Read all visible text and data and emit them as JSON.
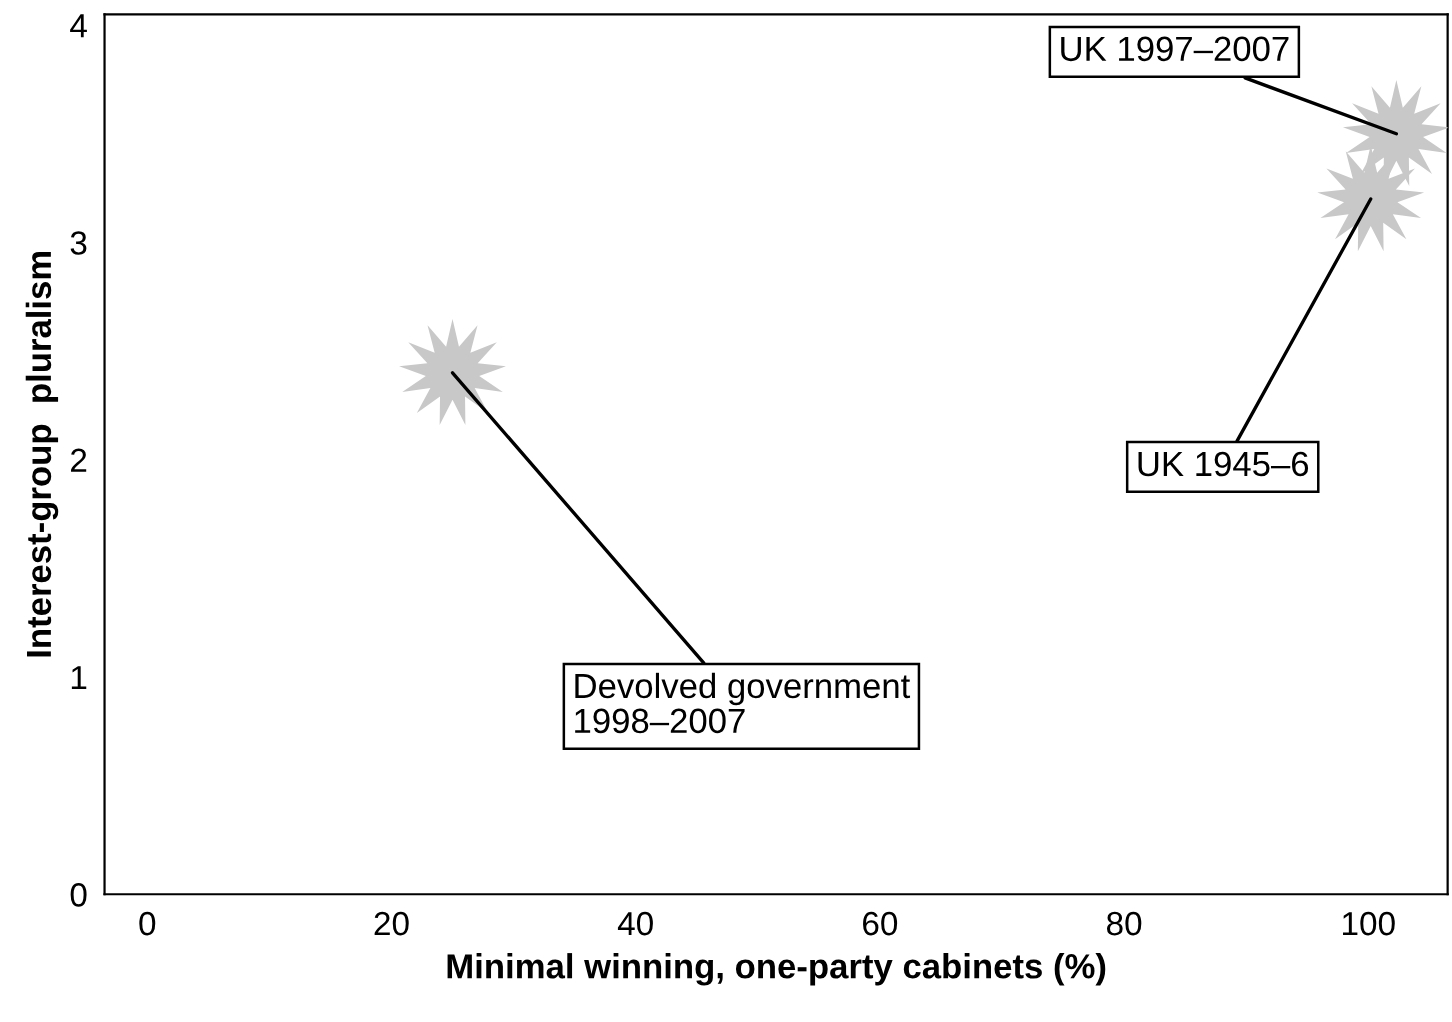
{
  "chart_data": {
    "type": "scatter",
    "xlabel": "Minimal winning, one-party cabinets (%)",
    "ylabel": "Interest-group  pluralism",
    "x": [
      25,
      102.3,
      100.2
    ],
    "values": [
      2.4,
      3.5,
      3.2
    ],
    "color": "#c8c8c8",
    "marker": "star",
    "xlim": [
      -3.5,
      106.5
    ],
    "ylim": [
      0,
      4.05
    ],
    "xticks": [
      0,
      20,
      40,
      60,
      80,
      100
    ],
    "yticks": [
      0,
      1,
      2,
      3,
      4
    ],
    "grid": false,
    "annotations": [
      {
        "text": "Devolved government\n1998–2007",
        "x": 25,
        "y": 2.4
      },
      {
        "text": "UK 1997–2007",
        "x": 102.3,
        "y": 3.5
      },
      {
        "text": "UK 1945–6",
        "x": 100.2,
        "y": 3.2
      }
    ]
  }
}
